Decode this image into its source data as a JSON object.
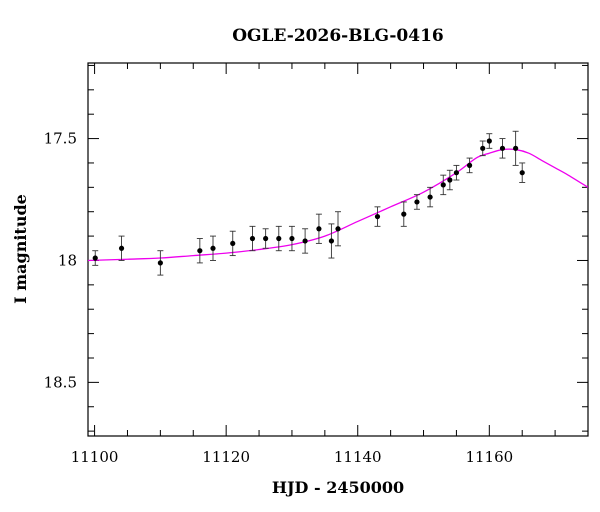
{
  "chart_data": {
    "type": "scatter",
    "title": "OGLE-2026-BLG-0416",
    "xlabel": "HJD - 2450000",
    "ylabel": "I magnitude",
    "xlim": [
      11099,
      11175
    ],
    "ylim": [
      18.72,
      17.19
    ],
    "y_inverted": true,
    "grid": false,
    "x_ticks": [
      "11100",
      "11120",
      "11140",
      "11160"
    ],
    "x_tick_values": [
      11100,
      11120,
      11140,
      11160
    ],
    "y_ticks": [
      "17.5",
      "18",
      "18.5"
    ],
    "y_tick_values": [
      17.5,
      18.0,
      18.5
    ],
    "series": [
      {
        "kind": "points",
        "color": "#000000",
        "x": [
          11100.1,
          11104.1,
          11110.0,
          11116.0,
          11118.0,
          11121.0,
          11124.0,
          11126.0,
          11128.0,
          11130.0,
          11132.0,
          11134.1,
          11136.0,
          11137.0,
          11143.0,
          11147.0,
          11149.0,
          11151.0,
          11153.0,
          11154.0,
          11155.0,
          11157.0,
          11159.0,
          11160.0,
          11162.0,
          11164.0,
          11165.0
        ],
        "y": [
          17.99,
          17.95,
          18.01,
          17.96,
          17.95,
          17.93,
          17.91,
          17.91,
          17.91,
          17.91,
          17.92,
          17.87,
          17.92,
          17.87,
          17.82,
          17.81,
          17.76,
          17.74,
          17.69,
          17.67,
          17.64,
          17.61,
          17.54,
          17.51,
          17.54,
          17.54,
          17.64
        ],
        "err": [
          0.03,
          0.05,
          0.05,
          0.05,
          0.05,
          0.05,
          0.05,
          0.04,
          0.05,
          0.05,
          0.05,
          0.06,
          0.07,
          0.07,
          0.04,
          0.05,
          0.03,
          0.04,
          0.04,
          0.04,
          0.03,
          0.03,
          0.03,
          0.03,
          0.04,
          0.07,
          0.04
        ]
      },
      {
        "kind": "line",
        "color": "#ee00ee",
        "x": [
          11099,
          11105,
          11110,
          11115,
          11120,
          11125,
          11130,
          11135,
          11140,
          11145,
          11150,
          11155,
          11158,
          11160,
          11162,
          11164,
          11166,
          11168,
          11170,
          11172,
          11175
        ],
        "y": [
          18.0,
          17.995,
          17.99,
          17.98,
          17.97,
          17.955,
          17.935,
          17.9,
          17.84,
          17.78,
          17.72,
          17.64,
          17.58,
          17.56,
          17.545,
          17.545,
          17.56,
          17.59,
          17.62,
          17.65,
          17.7
        ]
      }
    ]
  }
}
